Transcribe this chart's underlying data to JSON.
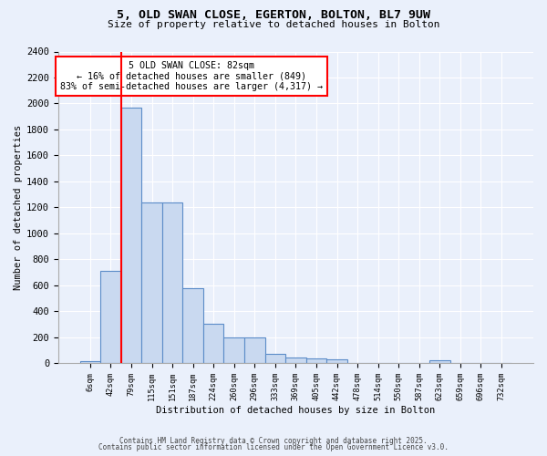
{
  "title_line1": "5, OLD SWAN CLOSE, EGERTON, BOLTON, BL7 9UW",
  "title_line2": "Size of property relative to detached houses in Bolton",
  "xlabel": "Distribution of detached houses by size in Bolton",
  "ylabel": "Number of detached properties",
  "bar_labels": [
    "6sqm",
    "42sqm",
    "79sqm",
    "115sqm",
    "151sqm",
    "187sqm",
    "224sqm",
    "260sqm",
    "296sqm",
    "333sqm",
    "369sqm",
    "405sqm",
    "442sqm",
    "478sqm",
    "514sqm",
    "550sqm",
    "587sqm",
    "623sqm",
    "659sqm",
    "696sqm",
    "732sqm"
  ],
  "bar_values": [
    15,
    710,
    1970,
    1240,
    1240,
    575,
    305,
    200,
    200,
    75,
    45,
    35,
    30,
    5,
    5,
    5,
    5,
    20,
    5,
    5,
    5
  ],
  "bar_color": "#c9d9f0",
  "bar_edge_color": "#5b8cc8",
  "red_line_index": 2,
  "annotation_line1": "5 OLD SWAN CLOSE: 82sqm",
  "annotation_line2": "← 16% of detached houses are smaller (849)",
  "annotation_line3": "83% of semi-detached houses are larger (4,317) →",
  "ylim": [
    0,
    2400
  ],
  "yticks": [
    0,
    200,
    400,
    600,
    800,
    1000,
    1200,
    1400,
    1600,
    1800,
    2000,
    2200,
    2400
  ],
  "background_color": "#eaf0fb",
  "plot_background": "#eaf0fb",
  "footer_line1": "Contains HM Land Registry data © Crown copyright and database right 2025.",
  "footer_line2": "Contains public sector information licensed under the Open Government Licence v3.0."
}
